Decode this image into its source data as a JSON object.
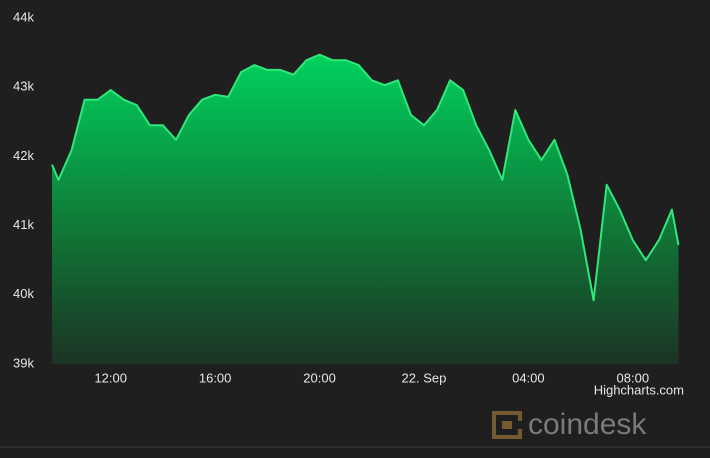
{
  "chart_data": {
    "type": "area",
    "x": [
      9.75,
      10,
      10.5,
      11,
      11.5,
      12,
      12.5,
      13,
      13.5,
      14,
      14.5,
      15,
      15.5,
      16,
      16.5,
      17,
      17.5,
      18,
      18.5,
      19,
      19.5,
      20,
      20.5,
      21,
      21.5,
      22,
      22.5,
      23,
      23.5,
      24,
      24.5,
      25,
      25.5,
      26,
      26.5,
      27,
      27.5,
      28,
      28.5,
      29,
      29.5,
      30,
      30.5,
      31,
      31.5,
      32,
      32.5,
      33,
      33.5,
      33.75
    ],
    "values": [
      41880,
      41660,
      42090,
      42820,
      42820,
      42960,
      42820,
      42740,
      42450,
      42450,
      42240,
      42600,
      42820,
      42890,
      42860,
      43220,
      43320,
      43250,
      43250,
      43180,
      43390,
      43470,
      43390,
      43390,
      43320,
      43100,
      43030,
      43100,
      42600,
      42450,
      42670,
      43100,
      42960,
      42450,
      42090,
      41660,
      42670,
      42240,
      41950,
      42240,
      41730,
      40940,
      39920,
      41590,
      41230,
      40790,
      40500,
      40790,
      41230,
      40720
    ],
    "color": "#2ee87a",
    "xlim": [
      9.75,
      34
    ],
    "xticks": [
      {
        "value": 12,
        "label": "12:00"
      },
      {
        "value": 16,
        "label": "16:00"
      },
      {
        "value": 20,
        "label": "20:00"
      },
      {
        "value": 24,
        "label": "22. Sep"
      },
      {
        "value": 28,
        "label": "04:00"
      },
      {
        "value": 32,
        "label": "08:00"
      }
    ],
    "ylim": [
      39000,
      44000
    ],
    "yticks": [
      {
        "value": 39000,
        "label": "39k"
      },
      {
        "value": 40000,
        "label": "40k"
      },
      {
        "value": 41000,
        "label": "41k"
      },
      {
        "value": 42000,
        "label": "42k"
      },
      {
        "value": 43000,
        "label": "43k"
      },
      {
        "value": 44000,
        "label": "44k"
      }
    ],
    "grid": true,
    "credits": "Highcharts.com",
    "watermark": "coindesk"
  }
}
